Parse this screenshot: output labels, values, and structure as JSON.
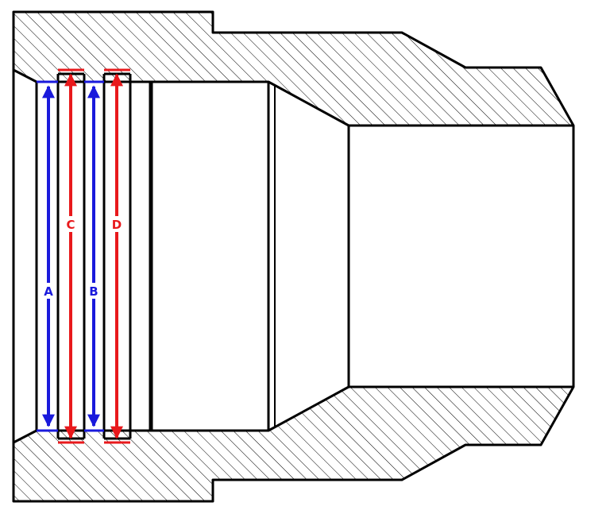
{
  "diagram": {
    "dimensions": [
      {
        "id": "A",
        "label": "A",
        "color": "#1a1adc"
      },
      {
        "id": "B",
        "label": "B",
        "color": "#1a1adc"
      },
      {
        "id": "C",
        "label": "C",
        "color": "#e8191c"
      },
      {
        "id": "D",
        "label": "D",
        "color": "#e8191c"
      }
    ],
    "colors": {
      "outline": "#000000",
      "hatch": "#000000",
      "background": "#ffffff"
    }
  }
}
